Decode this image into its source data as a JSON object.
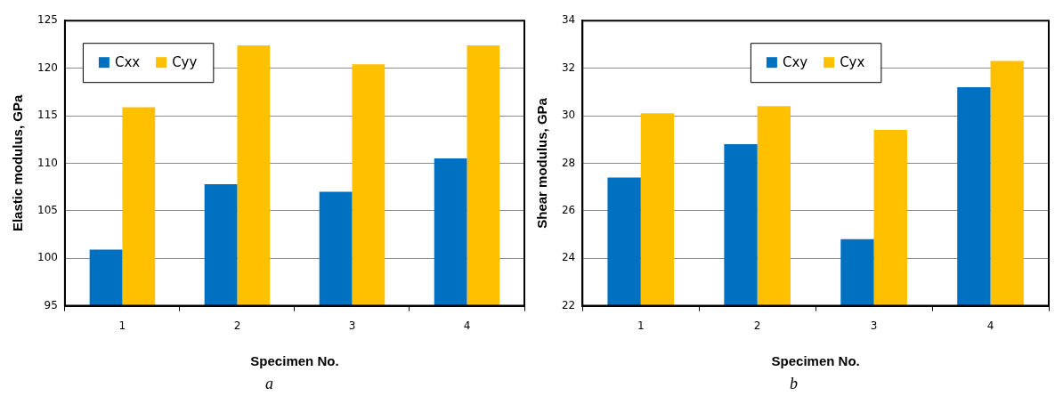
{
  "chart_data": [
    {
      "type": "bar",
      "ylabel": "Elastic modulus, GPa",
      "xlabel": "Specimen No.",
      "categories": [
        "1",
        "2",
        "3",
        "4"
      ],
      "series": [
        {
          "name": "Cxx",
          "color": "#0070c0",
          "values": [
            100.9,
            107.8,
            107.0,
            110.5
          ]
        },
        {
          "name": "Cyy",
          "color": "#ffc000",
          "values": [
            115.9,
            122.4,
            120.4,
            122.4
          ]
        }
      ],
      "ylim": [
        95,
        125
      ],
      "yticks": [
        95,
        100,
        105,
        110,
        115,
        120,
        125
      ],
      "grid": "y",
      "legend": "top left",
      "annotations": [
        "a"
      ]
    },
    {
      "type": "bar",
      "ylabel": "Shear modulus, GPa",
      "xlabel": "Specimen No.",
      "categories": [
        "1",
        "2",
        "3",
        "4"
      ],
      "series": [
        {
          "name": "Cxy",
          "color": "#0070c0",
          "values": [
            27.4,
            28.8,
            24.8,
            31.2
          ]
        },
        {
          "name": "Cyx",
          "color": "#ffc000",
          "values": [
            30.1,
            30.4,
            29.4,
            32.3
          ]
        }
      ],
      "ylim": [
        22,
        34
      ],
      "yticks": [
        22,
        24,
        26,
        28,
        30,
        32,
        34
      ],
      "grid": "y",
      "legend": "top",
      "annotations": [
        "b"
      ]
    }
  ]
}
